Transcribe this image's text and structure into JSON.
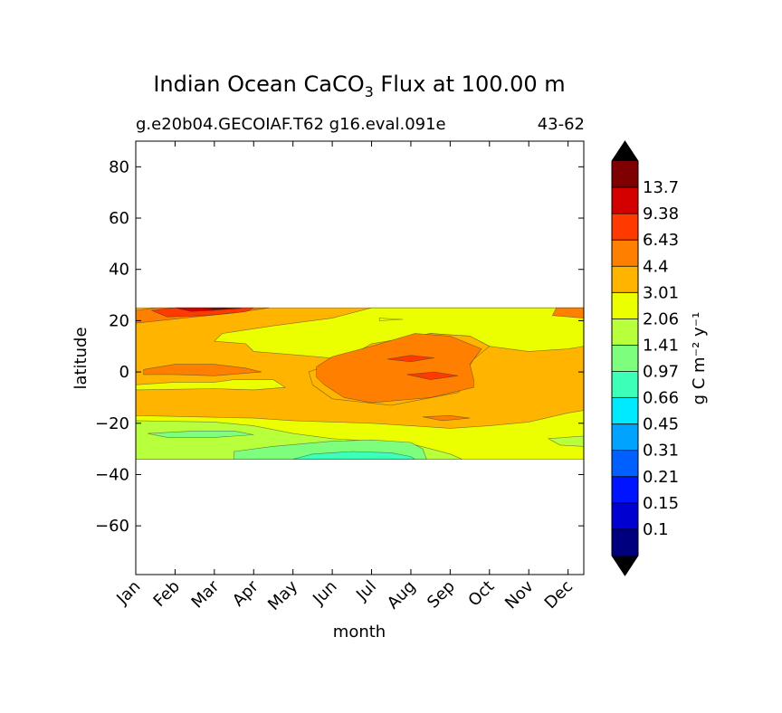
{
  "chart_data": {
    "type": "heatmap",
    "title_main": "Indian Ocean CaCO",
    "title_sub": "3",
    "title_rest": " Flux at 100.00 m",
    "subtitle_left": "g.e20b04.GECOIAF.T62 g16.eval.091e",
    "subtitle_right": "43-62",
    "xlabel": "month",
    "ylabel": "latitude",
    "x_ticks": [
      "Jan",
      "Feb",
      "Mar",
      "Apr",
      "May",
      "Jun",
      "Jul",
      "Aug",
      "Sep",
      "Oct",
      "Nov",
      "Dec"
    ],
    "y_ticks": [
      80,
      60,
      40,
      20,
      0,
      -20,
      -40,
      -60
    ],
    "y_tick_labels": [
      "80",
      "60",
      "40",
      "20",
      "0",
      "−20",
      "−40",
      "−60"
    ],
    "xlim": [
      0,
      11.4
    ],
    "ylim": [
      -79,
      90
    ],
    "data_lat_range": [
      -34,
      25
    ],
    "colorbar": {
      "label": "g C m⁻² y⁻¹",
      "levels": [
        "13.7",
        "9.38",
        "6.43",
        "4.4",
        "3.01",
        "2.06",
        "1.41",
        "0.97",
        "0.66",
        "0.45",
        "0.31",
        "0.21",
        "0.15",
        "0.1"
      ],
      "colors": [
        "#7f0000",
        "#d40000",
        "#ff3a00",
        "#ff7f00",
        "#ffb400",
        "#ecff00",
        "#b8ff3c",
        "#7dff7d",
        "#3cffb8",
        "#00eaff",
        "#00a4ff",
        "#0060ff",
        "#0014ff",
        "#0000d0",
        "#00007f"
      ],
      "extend_color": "#000000"
    },
    "regions": [
      {
        "level": "3.01",
        "poly": [
          [
            0,
            25
          ],
          [
            11.4,
            25
          ],
          [
            11.4,
            -34
          ],
          [
            0,
            -34
          ]
        ]
      },
      {
        "level": "2.06",
        "poly": [
          [
            0,
            -17
          ],
          [
            1.5,
            -17.5
          ],
          [
            3,
            -18
          ],
          [
            4,
            -19
          ],
          [
            5,
            -19.5
          ],
          [
            6,
            -20
          ],
          [
            7,
            -21
          ],
          [
            8,
            -22
          ],
          [
            9,
            -21
          ],
          [
            10,
            -19.5
          ],
          [
            11,
            -16
          ],
          [
            11.4,
            -15
          ],
          [
            11.4,
            -34
          ],
          [
            0,
            -34
          ]
        ]
      },
      {
        "level": "1.41",
        "poly": [
          [
            0,
            -19
          ],
          [
            2,
            -19.5
          ],
          [
            3,
            -21
          ],
          [
            4,
            -24
          ],
          [
            5,
            -26
          ],
          [
            6,
            -27
          ],
          [
            7,
            -28
          ],
          [
            7.5,
            -30
          ],
          [
            8,
            -32
          ],
          [
            8.3,
            -34
          ],
          [
            0,
            -34
          ]
        ]
      },
      {
        "level": "1.41",
        "poly": [
          [
            10.5,
            -26
          ],
          [
            11.4,
            -25
          ],
          [
            11.4,
            -29
          ],
          [
            10.8,
            -28.5
          ]
        ]
      },
      {
        "level": "0.97",
        "poly": [
          [
            2.5,
            -31
          ],
          [
            3.5,
            -29
          ],
          [
            5,
            -27
          ],
          [
            6,
            -26.5
          ],
          [
            7,
            -27.5
          ],
          [
            7.3,
            -30
          ],
          [
            7.4,
            -34
          ],
          [
            2.5,
            -34
          ]
        ]
      },
      {
        "level": "0.97",
        "poly": [
          [
            0.3,
            -24
          ],
          [
            1.5,
            -23
          ],
          [
            2.5,
            -23
          ],
          [
            3,
            -24.5
          ],
          [
            2,
            -25.5
          ],
          [
            0.8,
            -25.5
          ]
        ]
      },
      {
        "level": "0.66",
        "poly": [
          [
            4,
            -34
          ],
          [
            4.5,
            -32
          ],
          [
            5.5,
            -31
          ],
          [
            6.5,
            -31.5
          ],
          [
            7,
            -33
          ],
          [
            7.1,
            -34
          ]
        ]
      },
      {
        "level": "2.06",
        "poly": [
          [
            2,
            12
          ],
          [
            2.8,
            11
          ],
          [
            3,
            8
          ],
          [
            4.2,
            6.5
          ],
          [
            5.3,
            5
          ],
          [
            6.2,
            11
          ],
          [
            6.8,
            13
          ],
          [
            7.5,
            15
          ],
          [
            8.5,
            14
          ],
          [
            9,
            10
          ],
          [
            10,
            8
          ],
          [
            11,
            9
          ],
          [
            11.4,
            10
          ],
          [
            11.4,
            25
          ],
          [
            6,
            25
          ],
          [
            5,
            21
          ],
          [
            3.5,
            18
          ],
          [
            2.2,
            15
          ]
        ]
      },
      {
        "level": "2.06",
        "poly": [
          [
            0,
            -5
          ],
          [
            1,
            -4
          ],
          [
            2,
            -4
          ],
          [
            2.5,
            -3
          ],
          [
            3.5,
            -3
          ],
          [
            3.8,
            -6
          ],
          [
            3,
            -7
          ],
          [
            2,
            -6.5
          ],
          [
            0,
            -7
          ]
        ]
      },
      {
        "level": "2.06",
        "poly": [
          [
            6.2,
            20
          ],
          [
            6.8,
            20.5
          ],
          [
            6.2,
            21
          ]
        ]
      },
      {
        "level": "3.01",
        "poly": [
          [
            5.3,
            5
          ],
          [
            6,
            11
          ],
          [
            6.8,
            13
          ],
          [
            7.5,
            15
          ],
          [
            8.5,
            14
          ],
          [
            9,
            10
          ],
          [
            8.6,
            5
          ],
          [
            8.4,
            0
          ],
          [
            8.5,
            -4
          ],
          [
            8.2,
            -8
          ],
          [
            6.5,
            -13
          ],
          [
            5,
            -10.5
          ],
          [
            4.5,
            -5
          ],
          [
            4.4,
            0
          ]
        ]
      },
      {
        "level": "4.4",
        "poly": [
          [
            4.6,
            2
          ],
          [
            5,
            6
          ],
          [
            6,
            10
          ],
          [
            7.1,
            15
          ],
          [
            8,
            14
          ],
          [
            8.8,
            9
          ],
          [
            8.5,
            3
          ],
          [
            8.6,
            -3
          ],
          [
            8.6,
            -6
          ],
          [
            7.5,
            -10
          ],
          [
            6,
            -12
          ],
          [
            5.3,
            -10
          ],
          [
            4.8,
            -5
          ],
          [
            4.6,
            -2
          ]
        ]
      },
      {
        "level": "4.4",
        "poly": [
          [
            0.2,
            1
          ],
          [
            1,
            3
          ],
          [
            2,
            3
          ],
          [
            2.8,
            1.5
          ],
          [
            3.2,
            0
          ],
          [
            2,
            -1.5
          ],
          [
            1,
            -1
          ],
          [
            0.2,
            -1
          ]
        ]
      },
      {
        "level": "4.4",
        "poly": [
          [
            0,
            24
          ],
          [
            0.5,
            25
          ],
          [
            2.3,
            25
          ],
          [
            3.4,
            25
          ],
          [
            2.5,
            23
          ],
          [
            1.2,
            21
          ],
          [
            0,
            19
          ]
        ]
      },
      {
        "level": "4.4",
        "poly": [
          [
            7.3,
            -17.5
          ],
          [
            8,
            -17
          ],
          [
            8.5,
            -18
          ],
          [
            7.8,
            -19
          ]
        ]
      },
      {
        "level": "4.4",
        "poly": [
          [
            10.7,
            25
          ],
          [
            11.4,
            25
          ],
          [
            11.4,
            21
          ],
          [
            10.6,
            22
          ]
        ]
      },
      {
        "level": "6.43",
        "poly": [
          [
            0.4,
            24
          ],
          [
            1,
            25
          ],
          [
            3,
            25
          ],
          [
            2.8,
            23.5
          ],
          [
            1.8,
            22
          ],
          [
            0.8,
            21.5
          ]
        ]
      },
      {
        "level": "6.43",
        "poly": [
          [
            6.4,
            5
          ],
          [
            7,
            6.5
          ],
          [
            7.6,
            5.5
          ],
          [
            7,
            4
          ]
        ]
      },
      {
        "level": "6.43",
        "poly": [
          [
            6.9,
            -1
          ],
          [
            7.6,
            0
          ],
          [
            8.2,
            -1.5
          ],
          [
            7.5,
            -3
          ]
        ]
      },
      {
        "level": "9.38",
        "poly": [
          [
            1,
            25
          ],
          [
            2.3,
            25
          ],
          [
            2,
            24
          ],
          [
            1.4,
            23.6
          ]
        ]
      },
      {
        "level": "13.7",
        "poly": [
          [
            1.7,
            24.6
          ],
          [
            2.2,
            25
          ],
          [
            2.7,
            24.8
          ],
          [
            2.1,
            24.2
          ]
        ]
      }
    ]
  }
}
